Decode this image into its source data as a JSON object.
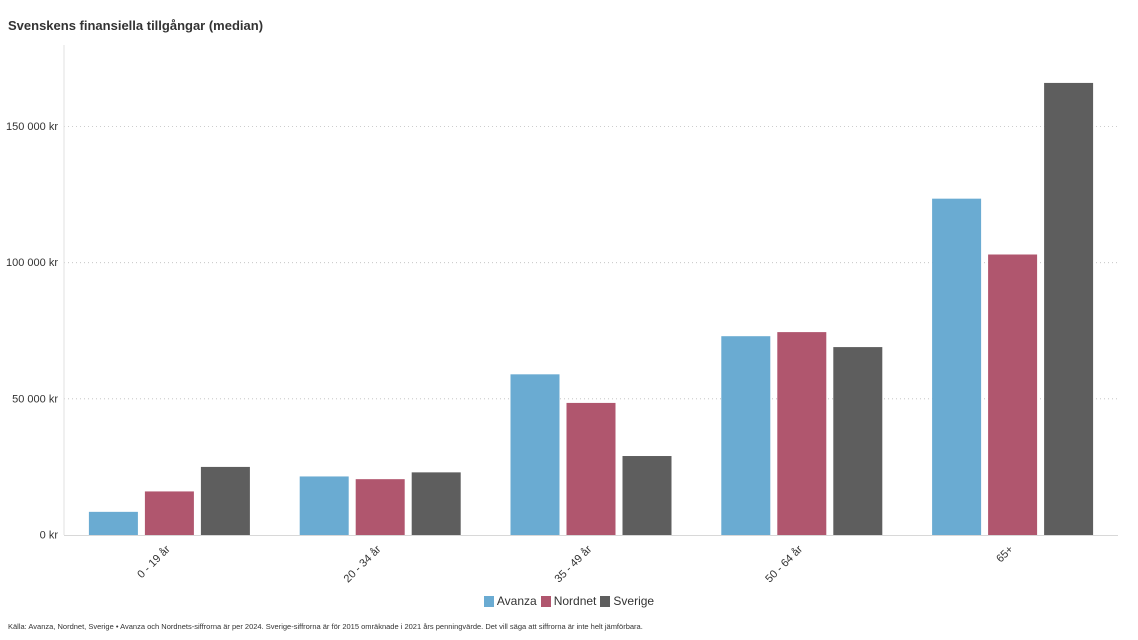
{
  "chart_data": {
    "type": "bar",
    "title": "Svenskens finansiella tillgångar (median)",
    "categories": [
      "0 - 19 år",
      "20 - 34 år",
      "35 - 49 år",
      "50 - 64 år",
      "65+"
    ],
    "series": [
      {
        "name": "Avanza",
        "color": "#6aabd2",
        "values": [
          8500,
          21500,
          59000,
          73000,
          123500
        ]
      },
      {
        "name": "Nordnet",
        "color": "#b0566e",
        "values": [
          16000,
          20500,
          48500,
          74500,
          103000
        ]
      },
      {
        "name": "Sverige",
        "color": "#5e5e5e",
        "values": [
          25000,
          23000,
          29000,
          69000,
          166000
        ]
      }
    ],
    "yticks": [
      0,
      50000,
      100000,
      150000
    ],
    "ytick_labels": [
      "0 kr",
      "50 000 kr",
      "100 000 kr",
      "150 000 kr"
    ],
    "ylim": [
      0,
      180000
    ],
    "grid": true,
    "legend_position": "bottom"
  },
  "footnote": "Källa: Avanza, Nordnet, Sverige • Avanza och Nordnets-siffrorna är per 2024. Sverige-siffrorna är för 2015 omräknade i 2021 års penningvärde. Det vill säga att siffrorna är inte helt jämförbara."
}
